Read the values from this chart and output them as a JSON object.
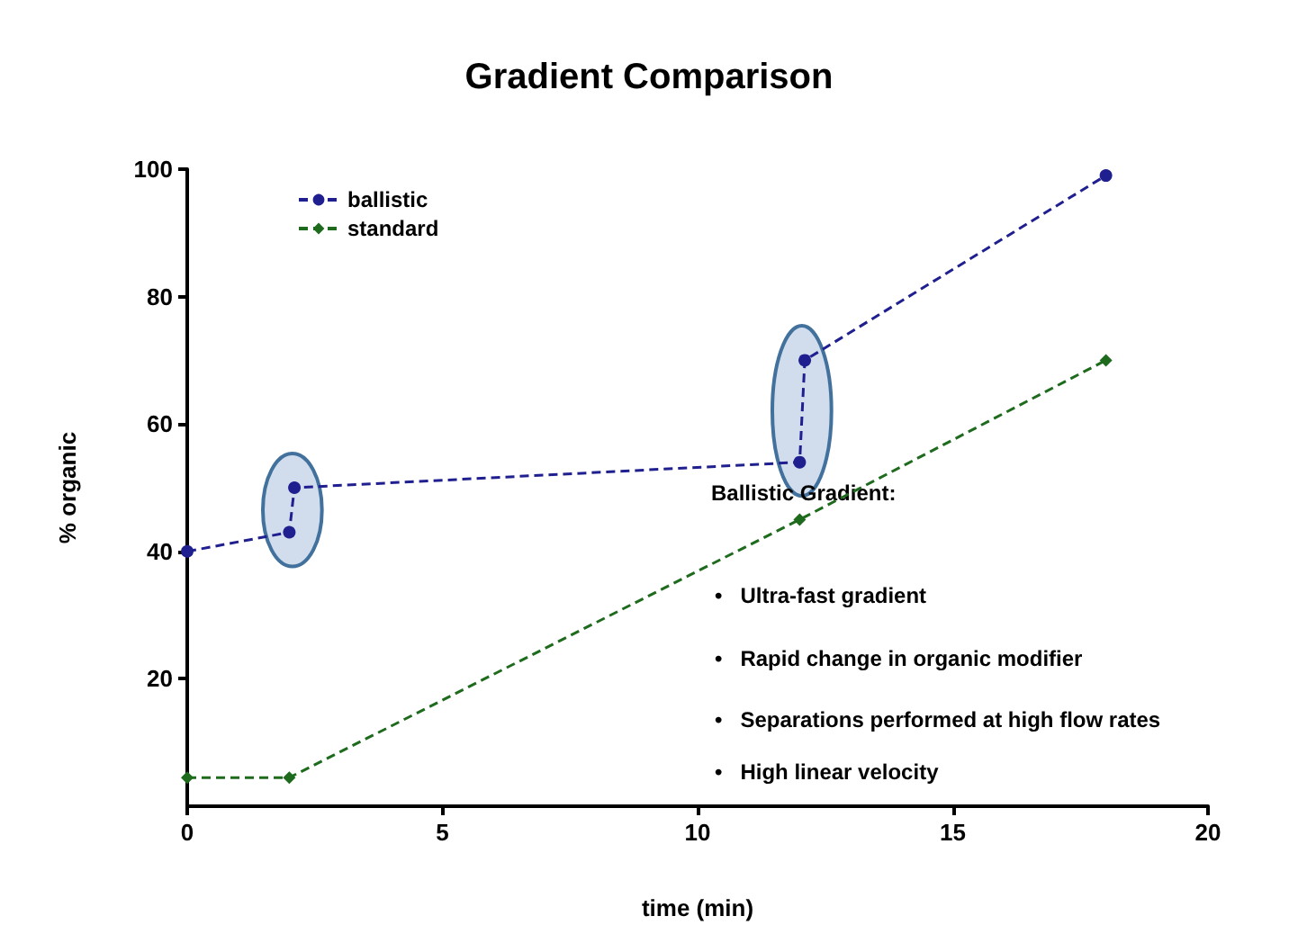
{
  "chart_data": {
    "type": "line",
    "title": "Gradient Comparison",
    "xlabel": "time (min)",
    "ylabel": "% organic",
    "series": [
      {
        "name": "ballistic",
        "color": "#1f1f8f",
        "marker": "circle",
        "line_style": "dashed",
        "x": [
          0,
          2,
          2.1,
          12,
          12.1,
          18
        ],
        "values": [
          40,
          43,
          50,
          54,
          70,
          99
        ]
      },
      {
        "name": "standard",
        "color": "#1e6b1e",
        "marker": "diamond",
        "line_style": "dashed",
        "x": [
          0,
          2,
          12,
          18
        ],
        "values": [
          4.5,
          4.5,
          45,
          70
        ]
      }
    ],
    "xlim": [
      0,
      20
    ],
    "xticks": [
      0,
      5,
      10,
      15,
      20
    ],
    "ylim": [
      0,
      100
    ],
    "yticks": [
      20,
      40,
      60,
      80,
      100
    ],
    "grid": false,
    "legend": "top left",
    "annotations": [
      "Ballistic Gradient:",
      "•   Ultra-fast gradient",
      "•   Rapid change in organic modifier",
      "•   Separations performed at high flow rates",
      "•   High linear velocity"
    ]
  }
}
